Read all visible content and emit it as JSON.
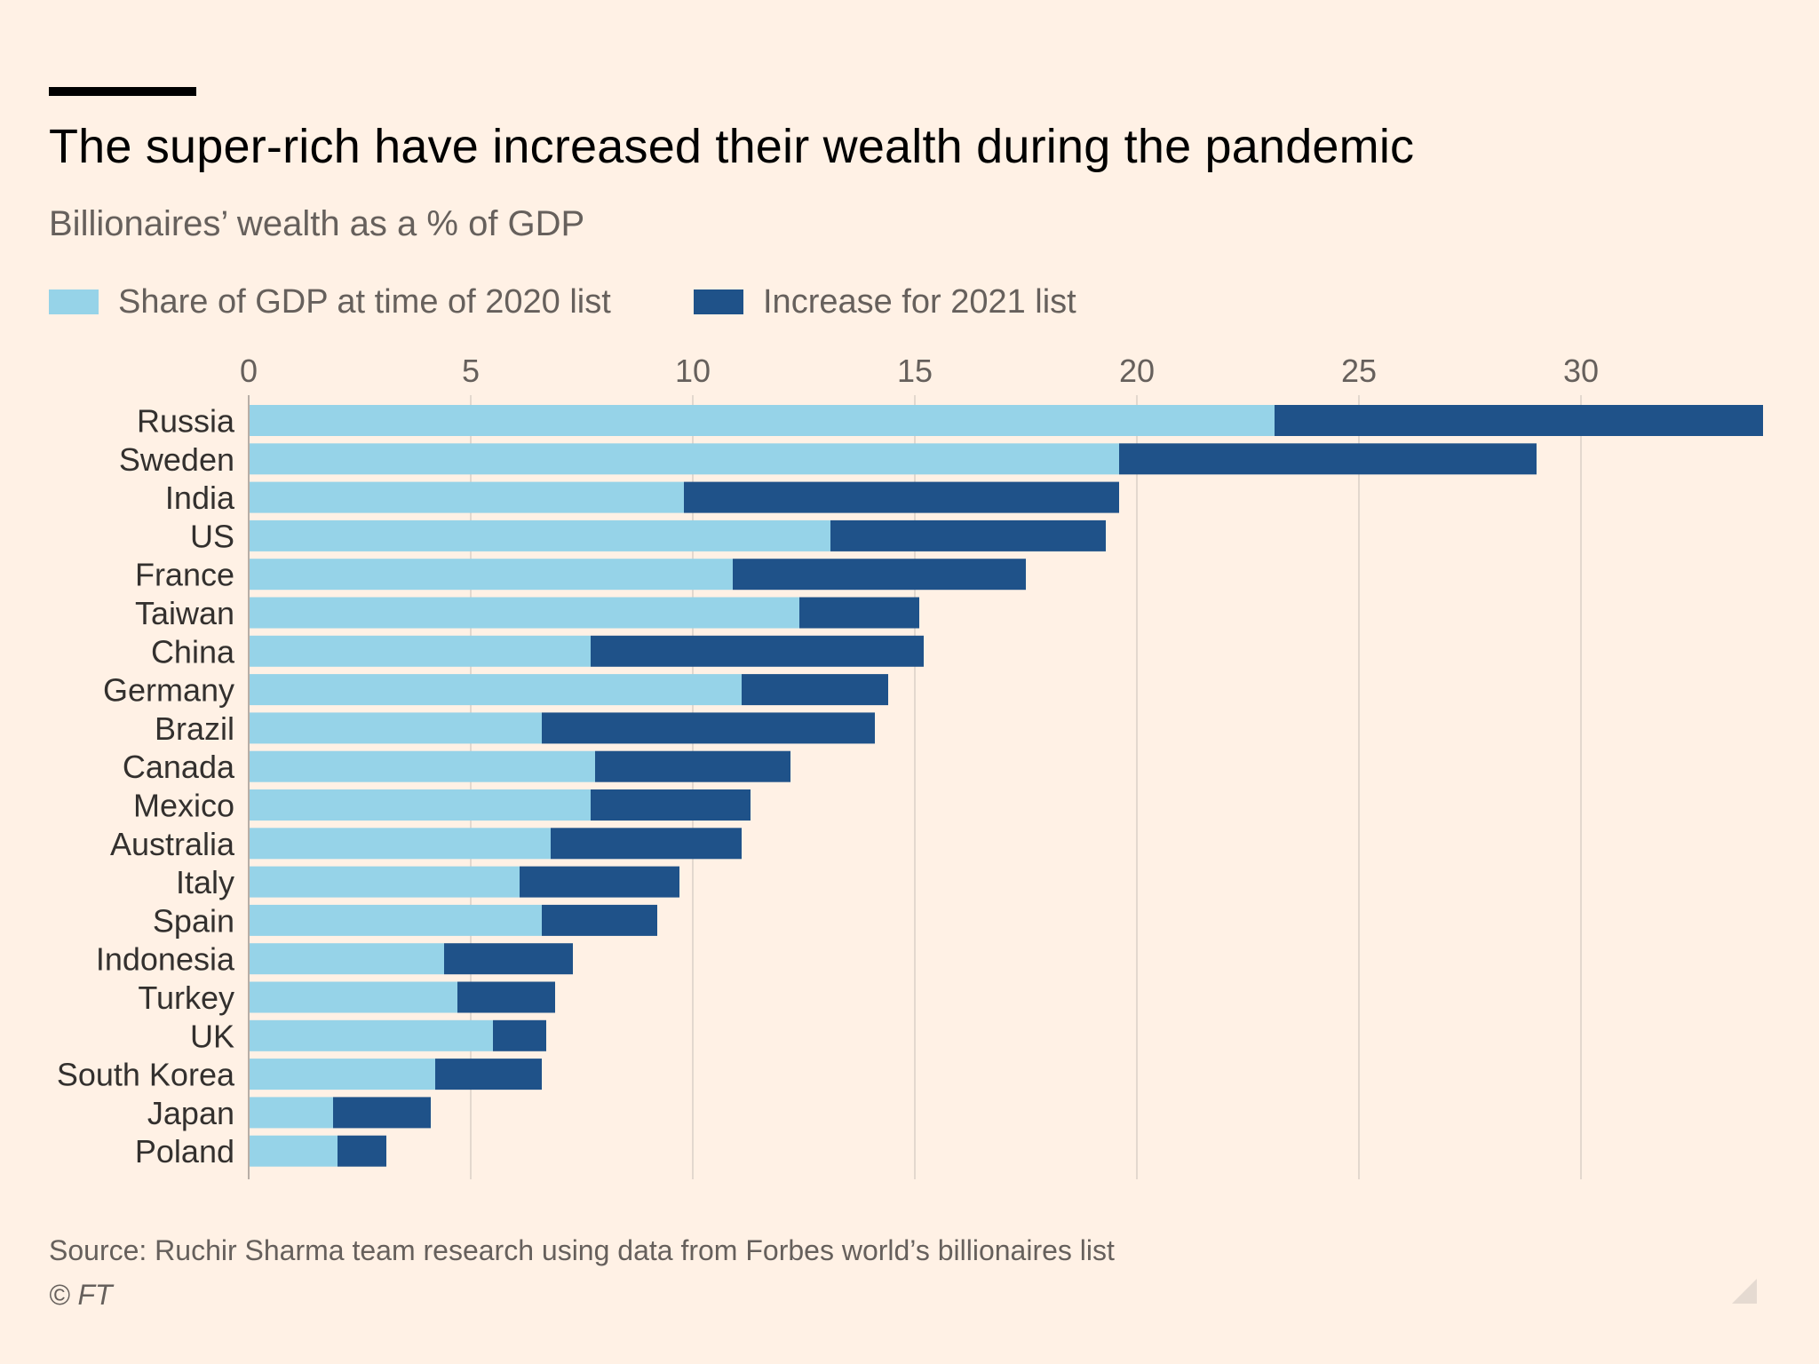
{
  "header": {
    "title": "The super-rich have increased their wealth during the pandemic",
    "subtitle": "Billionaires’ wealth as a % of GDP"
  },
  "legend": {
    "items": [
      {
        "label": "Share of GDP at time of 2020 list",
        "color": "#96d3e8"
      },
      {
        "label": "Increase for 2021 list",
        "color": "#1f5289"
      }
    ]
  },
  "footer": {
    "source": "Source: Ruchir Sharma team research using data from Forbes world’s billionaires list",
    "copyright": "© FT"
  },
  "chart_data": {
    "type": "bar",
    "orientation": "horizontal",
    "stacked": true,
    "title": "The super-rich have increased their wealth during the pandemic",
    "subtitle": "Billionaires’ wealth as a % of GDP",
    "xlabel": "",
    "ylabel": "",
    "xlim": [
      0,
      34
    ],
    "xticks": [
      0,
      5,
      10,
      15,
      20,
      25,
      30
    ],
    "grid": true,
    "legend_position": "top-left",
    "categories": [
      "Russia",
      "Sweden",
      "India",
      "US",
      "France",
      "Taiwan",
      "China",
      "Germany",
      "Brazil",
      "Canada",
      "Mexico",
      "Australia",
      "Italy",
      "Spain",
      "Indonesia",
      "Turkey",
      "UK",
      "South Korea",
      "Japan",
      "Poland"
    ],
    "series": [
      {
        "name": "Share of GDP at time of 2020 list",
        "color": "#96d3e8",
        "values": [
          23.1,
          19.6,
          9.8,
          13.1,
          10.9,
          12.4,
          7.7,
          11.1,
          6.6,
          7.8,
          7.7,
          6.8,
          6.1,
          6.6,
          4.4,
          4.7,
          5.5,
          4.2,
          1.9,
          2.0
        ]
      },
      {
        "name": "Increase for 2021 list",
        "color": "#1f5289",
        "values": [
          11.0,
          9.4,
          9.8,
          6.2,
          6.6,
          2.7,
          7.5,
          3.3,
          7.5,
          4.4,
          3.6,
          4.3,
          3.6,
          2.6,
          2.9,
          2.2,
          1.2,
          2.4,
          2.2,
          1.1
        ]
      }
    ]
  }
}
